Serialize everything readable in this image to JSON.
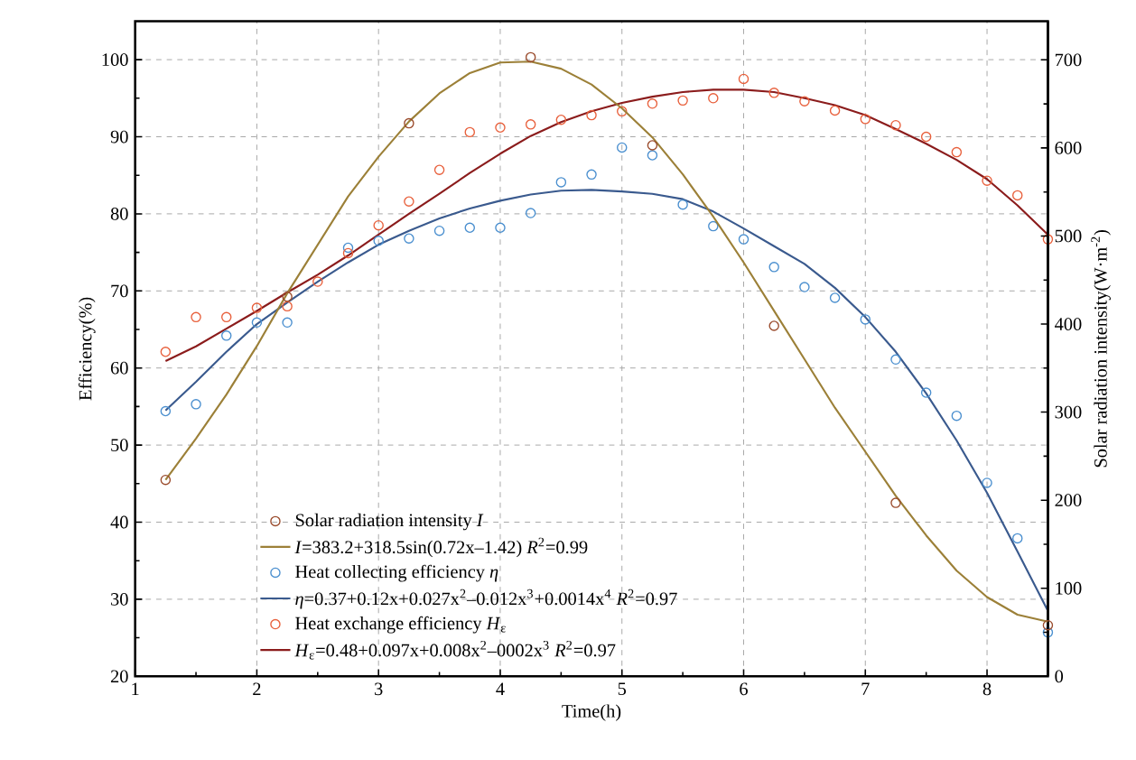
{
  "chart_data": {
    "type": "scatter",
    "xlabel": "Time(h)",
    "ylabel": "Efficiency(%)",
    "y2label": "Solar radiation intensity(W·m$^{-2}$)",
    "x": [
      1.25,
      1.5,
      1.75,
      2,
      2.25,
      2.5,
      2.75,
      3,
      3.25,
      3.5,
      3.75,
      4,
      4.25,
      4.5,
      4.75,
      5,
      5.25,
      5.5,
      5.75,
      6,
      6.25,
      6.5,
      6.75,
      7,
      7.25,
      7.5,
      7.75,
      8,
      8.25,
      8.5
    ],
    "series": [
      {
        "name": "Solar radiation intensity *I*",
        "type": "scatter",
        "marker": "circle",
        "axis": "y2",
        "color": "#9a4b2c",
        "x": [
          1.25,
          2.25,
          3.25,
          4.25,
          5.25,
          6.25,
          7.25,
          8.5
        ],
        "values": [
          223,
          431,
          628,
          703,
          603,
          398,
          197,
          58
        ]
      },
      {
        "name": "*I*=383.2+318.5sin(0.72x–1.42)  *R*$^{2}$=0.99",
        "type": "line",
        "marker": "none",
        "axis": "y2",
        "color": "#9c8038",
        "values": [
          223,
          270,
          320,
          375,
          435,
          490,
          545,
          590,
          630,
          662,
          685,
          697,
          698,
          690,
          672,
          645,
          612,
          570,
          522,
          470,
          415,
          360,
          305,
          255,
          205,
          160,
          120,
          90,
          70,
          62
        ]
      },
      {
        "name": "Heat collecting efficiency *η*",
        "type": "scatter",
        "marker": "circle",
        "color": "#4a8fcf",
        "values": [
          54.4,
          55.3,
          64.2,
          65.9,
          65.9,
          null,
          75.6,
          76.5,
          76.8,
          77.8,
          78.2,
          78.2,
          80.1,
          84.1,
          85.1,
          88.6,
          87.6,
          81.2,
          78.4,
          76.7,
          73.1,
          70.5,
          69.1,
          66.3,
          61.1,
          56.8,
          53.8,
          45.1,
          37.9,
          25.7
        ]
      },
      {
        "name": "*η*=0.37+0.12x+0.027x$^{2}$–0.012x$^{3}$+0.0014x$^{4}$   *R*$^{2}$=0.97",
        "type": "line",
        "marker": "none",
        "color": "#3a5a8e",
        "values": [
          54.5,
          58.2,
          62.1,
          65.7,
          68.5,
          71.2,
          73.7,
          76,
          77.8,
          79.4,
          80.7,
          81.7,
          82.5,
          83,
          83.1,
          82.9,
          82.6,
          81.9,
          80.3,
          78.1,
          75.8,
          73.5,
          70.4,
          66.6,
          62.1,
          56.7,
          50.6,
          43.8,
          36.2,
          28.5
        ]
      },
      {
        "name": "Heat exchange efficiency *H*$_{ε}$",
        "type": "scatter",
        "marker": "circle",
        "color": "#e8603c",
        "values": [
          62.1,
          66.6,
          66.6,
          67.8,
          68,
          71.2,
          74.9,
          78.5,
          81.6,
          85.7,
          90.6,
          91.2,
          91.6,
          92.2,
          92.8,
          93.3,
          94.3,
          94.7,
          95,
          97.5,
          95.7,
          94.6,
          93.4,
          92.3,
          91.5,
          90,
          88,
          84.3,
          82.4,
          76.7
        ]
      },
      {
        "name": "*H*$_{ε}$=0.48+0.097x+0.008x$^{2}$–0002x$^{3}$ *R*$^{2}$=0.97",
        "type": "line",
        "marker": "none",
        "color": "#8b1c1c",
        "values": [
          60.9,
          62.8,
          65.1,
          67.4,
          69.8,
          72.1,
          74.6,
          77.3,
          80,
          82.6,
          85.3,
          87.8,
          90.1,
          91.9,
          93.3,
          94.4,
          95.2,
          95.8,
          96.1,
          96.1,
          95.8,
          95,
          94.1,
          92.8,
          91,
          89.1,
          87,
          84.5,
          81.1,
          77.3
        ]
      }
    ],
    "xlim": [
      1,
      8.5
    ],
    "xticks": [
      1,
      2,
      3,
      4,
      5,
      6,
      7,
      8
    ],
    "ylim": [
      20,
      105
    ],
    "yticks": [
      20,
      30,
      40,
      50,
      60,
      70,
      80,
      90,
      100
    ],
    "y2lim": [
      0,
      744
    ],
    "y2ticks": [
      0,
      100,
      200,
      300,
      400,
      500,
      600,
      700
    ],
    "grid": true,
    "legend": "bottom left",
    "line_style": "solid"
  }
}
